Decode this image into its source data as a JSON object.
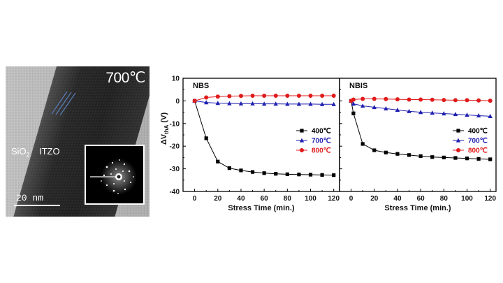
{
  "micrograph": {
    "temperature_label": "700℃",
    "sio2_label": "SiO",
    "sio2_subscript": "2",
    "itzo_label": "ITZO",
    "scale_label": "20 nm"
  },
  "chart_data": {
    "type": "line",
    "ylabel_main": "ΔV",
    "ylabel_sub": "thA",
    "ylabel_unit": " (V)",
    "xlabel": "Stress Time (min.)",
    "xlim": [
      -10,
      125
    ],
    "ylim": [
      -40,
      10
    ],
    "xticks": [
      0,
      20,
      40,
      60,
      80,
      100,
      120
    ],
    "yticks": [
      10,
      0,
      -10,
      -20,
      -30,
      -40
    ],
    "colors": {
      "400": "#000000",
      "700": "#1f1fb0",
      "800": "#e01b1b"
    },
    "markers": {
      "400": "square",
      "700": "triangle",
      "800": "circle"
    },
    "panels": [
      {
        "title": "NBS",
        "x": [
          0,
          10,
          20,
          30,
          40,
          50,
          60,
          70,
          80,
          90,
          100,
          110,
          120
        ],
        "series": [
          {
            "key": "400",
            "name": "400℃",
            "values": [
              0,
              -16.5,
              -26.8,
              -29.7,
              -30.7,
              -31.4,
              -31.9,
              -32.2,
              -32.4,
              -32.5,
              -32.6,
              -32.7,
              -32.8
            ]
          },
          {
            "key": "700",
            "name": "700℃",
            "values": [
              0,
              -0.7,
              -1.0,
              -1.1,
              -1.2,
              -1.2,
              -1.3,
              -1.3,
              -1.4,
              -1.4,
              -1.4,
              -1.5,
              -1.5
            ]
          },
          {
            "key": "800",
            "name": "800℃",
            "values": [
              0,
              1.5,
              1.9,
              2.1,
              2.2,
              2.3,
              2.3,
              2.3,
              2.3,
              2.3,
              2.3,
              2.3,
              2.3
            ]
          }
        ]
      },
      {
        "title": "NBIS",
        "x": [
          0,
          2,
          10,
          20,
          30,
          40,
          50,
          60,
          70,
          80,
          90,
          100,
          110,
          120
        ],
        "series": [
          {
            "key": "400",
            "name": "400℃",
            "values": [
              0,
              -5.5,
              -19.0,
              -21.8,
              -22.8,
              -23.4,
              -23.9,
              -24.4,
              -24.8,
              -25.0,
              -25.2,
              -25.4,
              -25.6,
              -25.8
            ]
          },
          {
            "key": "700",
            "name": "700℃",
            "values": [
              0,
              -1.3,
              -2.2,
              -2.8,
              -3.4,
              -4.0,
              -4.6,
              -5.0,
              -5.3,
              -5.6,
              -5.9,
              -6.2,
              -6.5,
              -6.8
            ]
          },
          {
            "key": "800",
            "name": "800℃",
            "values": [
              0,
              0.6,
              0.9,
              0.9,
              0.8,
              0.7,
              0.6,
              0.6,
              0.5,
              0.4,
              0.3,
              0.3,
              0.2,
              0.1
            ]
          }
        ]
      }
    ]
  }
}
